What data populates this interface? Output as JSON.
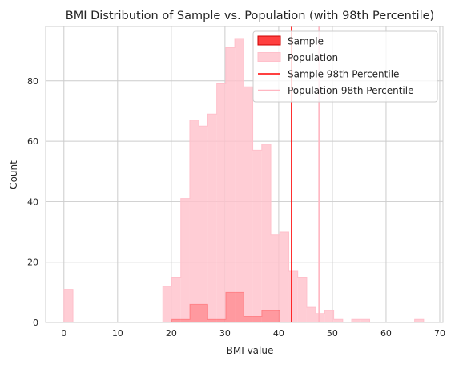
{
  "chart_data": {
    "type": "bar",
    "title": "BMI Distribution of Sample vs. Population (with 98th Percentile)",
    "xlabel": "BMI value",
    "ylabel": "Count",
    "xlim": [
      -3.4,
      70.6
    ],
    "ylim": [
      0,
      98
    ],
    "xticks": [
      0,
      10,
      20,
      30,
      40,
      50,
      60,
      70
    ],
    "yticks": [
      0,
      20,
      40,
      60,
      80
    ],
    "grid": true,
    "legend_position": "top-right",
    "bin_width": 1.675,
    "bin_start": 0,
    "series": [
      {
        "name": "Population",
        "color": "#ffc0cb",
        "values": [
          11,
          0,
          0,
          0,
          0,
          0,
          0,
          0,
          0,
          0,
          0,
          12,
          15,
          41,
          67,
          65,
          69,
          79,
          91,
          94,
          78,
          57,
          59,
          29,
          30,
          17,
          15,
          5,
          3,
          4,
          1,
          0,
          1,
          1,
          0,
          0,
          0,
          0,
          0,
          1
        ]
      },
      {
        "name": "Sample",
        "color": "#ff0000",
        "bin_width": 3.35,
        "values": [
          0,
          0,
          0,
          0,
          0,
          0,
          1,
          6,
          1,
          10,
          2,
          4,
          0,
          0,
          0,
          0,
          0,
          0,
          0,
          0
        ]
      }
    ],
    "percentiles": [
      {
        "name": "Sample 98th Percentile",
        "value": 42.4,
        "color": "#ff0000"
      },
      {
        "name": "Population 98th Percentile",
        "value": 47.5,
        "color": "#ffb6c1"
      }
    ]
  }
}
